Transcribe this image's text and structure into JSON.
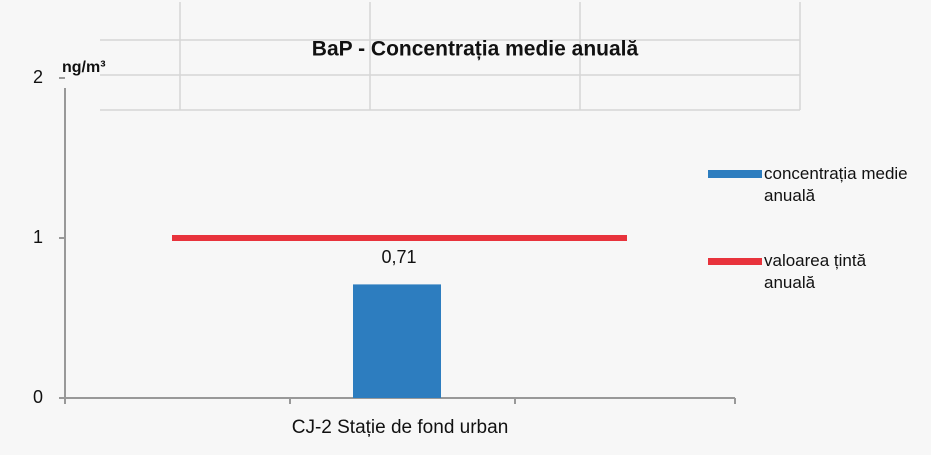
{
  "chart_data": {
    "type": "bar",
    "title": "BaP - Concentrația medie anuală",
    "y_label": "ng/m³",
    "categories": [
      "CJ-2 Stație de fond urban"
    ],
    "series": [
      {
        "name": "concentrația medie anuală",
        "color": "#2d7dbf",
        "values": [
          0.71
        ],
        "value_labels": [
          "0,71"
        ]
      },
      {
        "name": "valoarea țintă anuală",
        "color": "#e8333c",
        "values": [
          1
        ],
        "kind": "target-line"
      }
    ],
    "ylim": [
      0,
      2
    ],
    "yticks": [
      0,
      1,
      2
    ],
    "legend": "right"
  }
}
